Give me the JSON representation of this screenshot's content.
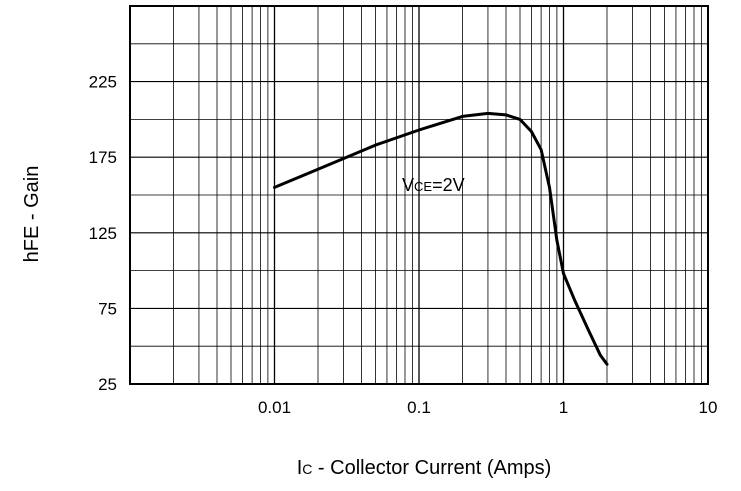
{
  "chart_data": {
    "type": "line",
    "x_scale": "log",
    "xlim": [
      0.001,
      10
    ],
    "ylim": [
      25,
      275
    ],
    "grid": true,
    "xlabel": {
      "main": "I",
      "sub": "C",
      "rest": " - Collector Current (Amps)"
    },
    "ylabel": "hFE - Gain",
    "x_ticks": [
      {
        "value": 0.01,
        "label": "0.01"
      },
      {
        "value": 0.1,
        "label": "0.1"
      },
      {
        "value": 1,
        "label": "1"
      },
      {
        "value": 10,
        "label": "10"
      }
    ],
    "y_ticks": [
      {
        "value": 25,
        "label": "25"
      },
      {
        "value": 75,
        "label": "75"
      },
      {
        "value": 125,
        "label": "125"
      },
      {
        "value": 175,
        "label": "175"
      },
      {
        "value": 225,
        "label": "225"
      }
    ],
    "annotation": {
      "main": "V",
      "sub": "CE",
      "rest": "=2V"
    },
    "series": [
      {
        "x": [
          0.01,
          0.02,
          0.05,
          0.1,
          0.2,
          0.3,
          0.4,
          0.5,
          0.6,
          0.7,
          0.8,
          0.9,
          1.0,
          1.2,
          1.5,
          1.8,
          2.0
        ],
        "y": [
          155,
          167,
          183,
          193,
          202,
          204,
          203,
          200,
          192,
          180,
          155,
          120,
          98,
          80,
          60,
          44,
          38
        ]
      }
    ]
  }
}
